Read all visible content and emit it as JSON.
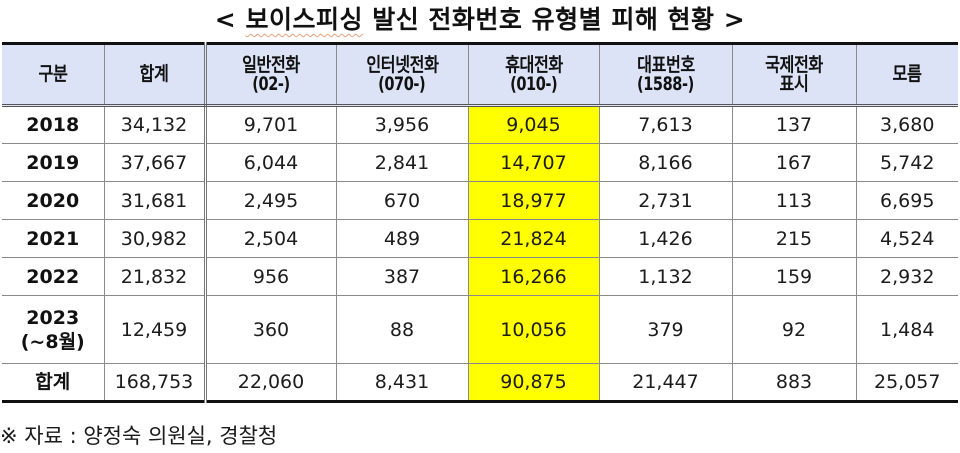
{
  "title": {
    "open": "<",
    "highlighted": "보이스피싱",
    "rest": "발신 전화번호 유형별 피해 현황",
    "close": ">"
  },
  "colors": {
    "header_bg": "#dce3f6",
    "highlight": "#ffff00"
  },
  "table": {
    "headers": [
      {
        "line1": "구분",
        "line2": ""
      },
      {
        "line1": "합계",
        "line2": ""
      },
      {
        "line1": "일반전화",
        "line2": "(02-)"
      },
      {
        "line1": "인터넷전화",
        "line2": "(070-)"
      },
      {
        "line1": "휴대전화",
        "line2": "(010-)"
      },
      {
        "line1": "대표번호",
        "line2": "(1588-)"
      },
      {
        "line1": "국제전화",
        "line2": "표시"
      },
      {
        "line1": "모름",
        "line2": ""
      }
    ],
    "rows": [
      {
        "label": "2018",
        "label2": "",
        "cells": [
          "34,132",
          "9,701",
          "3,956",
          "9,045",
          "7,613",
          "137",
          "3,680"
        ]
      },
      {
        "label": "2019",
        "label2": "",
        "cells": [
          "37,667",
          "6,044",
          "2,841",
          "14,707",
          "8,166",
          "167",
          "5,742"
        ]
      },
      {
        "label": "2020",
        "label2": "",
        "cells": [
          "31,681",
          "2,495",
          "670",
          "18,977",
          "2,731",
          "113",
          "6,695"
        ]
      },
      {
        "label": "2021",
        "label2": "",
        "cells": [
          "30,982",
          "2,504",
          "489",
          "21,824",
          "1,426",
          "215",
          "4,524"
        ]
      },
      {
        "label": "2022",
        "label2": "",
        "cells": [
          "21,832",
          "956",
          "387",
          "16,266",
          "1,132",
          "159",
          "2,932"
        ]
      },
      {
        "label": "2023",
        "label2": "(~8월)",
        "cells": [
          "12,459",
          "360",
          "88",
          "10,056",
          "379",
          "92",
          "1,484"
        ]
      },
      {
        "label": "합계",
        "label2": "",
        "cells": [
          "168,753",
          "22,060",
          "8,431",
          "90,875",
          "21,447",
          "883",
          "25,057"
        ]
      }
    ],
    "highlight_column_index": 4
  },
  "source_note": "※ 자료 : 양정숙 의원실, 경찰청"
}
